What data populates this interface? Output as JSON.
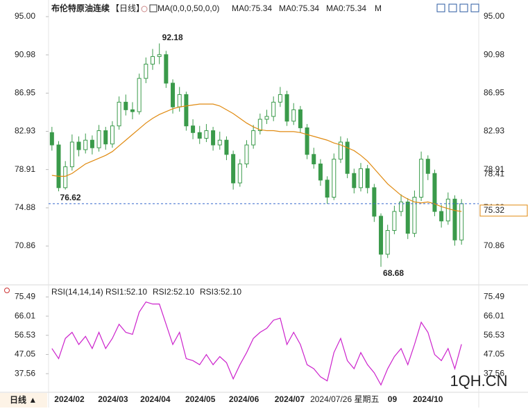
{
  "chart_data": [
    {
      "type": "candlestick",
      "title": "布伦特原油连续",
      "period": "【日线】",
      "indicator": "MA(0,0,0,50,0,0)",
      "legend": [
        {
          "label": "MA0:75.34",
          "color": "#1a1a4a"
        },
        {
          "label": "MA0:75.34",
          "color": "#2a3fb0"
        },
        {
          "label": "MA0:75.34",
          "color": "#d030d0"
        },
        {
          "label": "M",
          "color": "#e08a10"
        }
      ],
      "color": "#3a9a4a",
      "candles": {
        "open": [
          82.8,
          81.5,
          77.0,
          79.2,
          81.8,
          81.0,
          82.0,
          81.2,
          83.0,
          81.6,
          83.5,
          86.0,
          85.2,
          85.0,
          88.5,
          90.0,
          90.8,
          91.0,
          88.0,
          85.5,
          86.8,
          83.5,
          82.8,
          82.2,
          83.0,
          81.5,
          82.0,
          80.5,
          77.5,
          79.5,
          81.5,
          83.0,
          84.2,
          84.5,
          86.0,
          86.8,
          84.0,
          85.2,
          83.3,
          80.5,
          79.5,
          77.8,
          76.0,
          80.0,
          81.8,
          78.5,
          77.0,
          79.0,
          77.0,
          74.0,
          70.0,
          72.5,
          74.5,
          75.5,
          72.2,
          76.0,
          80.0,
          78.5,
          74.5,
          73.5,
          75.8,
          71.5
        ],
        "high": [
          83.4,
          81.9,
          79.8,
          82.6,
          82.4,
          82.7,
          82.5,
          83.6,
          83.4,
          84.0,
          86.6,
          86.8,
          86.0,
          89.0,
          90.7,
          91.6,
          92.18,
          91.4,
          88.4,
          87.6,
          87.1,
          84.2,
          83.5,
          83.7,
          83.4,
          82.9,
          82.4,
          80.9,
          80.0,
          82.0,
          83.6,
          84.8,
          85.2,
          86.6,
          87.6,
          87.2,
          85.9,
          85.6,
          83.7,
          81.2,
          80.0,
          78.2,
          80.6,
          82.4,
          82.2,
          79.0,
          79.6,
          79.4,
          77.4,
          74.3,
          73.1,
          75.1,
          76.3,
          75.9,
          76.7,
          80.8,
          80.4,
          78.9,
          75.2,
          76.5,
          76.2,
          75.8
        ],
        "low": [
          80.9,
          76.62,
          76.8,
          78.8,
          80.3,
          80.6,
          80.5,
          80.8,
          81.0,
          81.2,
          83.1,
          84.6,
          84.2,
          84.7,
          88.0,
          89.4,
          90.0,
          87.5,
          84.8,
          85.0,
          83.0,
          82.1,
          81.6,
          81.8,
          80.9,
          81.0,
          79.9,
          76.8,
          77.1,
          79.1,
          81.1,
          82.6,
          83.7,
          84.0,
          85.5,
          83.5,
          83.6,
          82.8,
          80.0,
          79.0,
          77.2,
          75.3,
          75.7,
          79.6,
          78.0,
          76.4,
          76.6,
          76.4,
          73.4,
          68.68,
          69.6,
          72.1,
          74.0,
          71.6,
          71.8,
          75.6,
          77.8,
          74.0,
          72.8,
          73.1,
          70.9,
          71.0
        ],
        "close": [
          81.5,
          77.0,
          79.2,
          81.8,
          81.0,
          82.0,
          81.2,
          83.0,
          81.6,
          83.5,
          86.0,
          85.2,
          85.0,
          88.5,
          90.0,
          90.8,
          91.0,
          88.0,
          85.5,
          86.8,
          83.5,
          82.8,
          82.2,
          83.0,
          81.5,
          82.0,
          80.5,
          77.5,
          79.5,
          81.5,
          83.0,
          84.2,
          84.5,
          86.0,
          86.8,
          84.0,
          85.2,
          83.3,
          80.5,
          79.5,
          77.8,
          76.0,
          80.0,
          81.8,
          78.5,
          77.0,
          79.0,
          77.0,
          74.0,
          70.0,
          72.5,
          74.5,
          75.5,
          72.2,
          76.0,
          80.0,
          78.5,
          74.5,
          73.5,
          75.8,
          71.5,
          75.32
        ]
      },
      "ma": {
        "color": "#e08a10",
        "values": [
          78.3,
          78.2,
          78.2,
          78.5,
          79.0,
          79.5,
          79.8,
          80.1,
          80.4,
          80.8,
          81.4,
          82.0,
          82.6,
          83.2,
          83.8,
          84.3,
          84.7,
          85.0,
          85.3,
          85.5,
          85.6,
          85.7,
          85.8,
          85.8,
          85.8,
          85.6,
          85.2,
          84.8,
          84.3,
          83.8,
          83.4,
          83.1,
          83.0,
          83.0,
          82.9,
          82.9,
          82.9,
          82.8,
          82.6,
          82.4,
          82.2,
          82.0,
          81.7,
          81.5,
          81.2,
          80.9,
          80.4,
          79.8,
          79.0,
          78.2,
          77.4,
          76.8,
          76.2,
          75.8,
          75.5,
          75.4,
          75.5,
          75.3,
          75.0,
          74.8,
          74.6,
          74.5
        ]
      },
      "ma_label": 78.41,
      "ylim": [
        66.85,
        95.29
      ],
      "yticks": [
        {
          "value": 95,
          "label": "95.00"
        },
        90.98,
        86.95,
        82.93,
        78.91,
        74.88,
        70.86
      ],
      "xticks": [
        {
          "value": 2.6,
          "label": "2024/02"
        },
        {
          "value": 9.1,
          "label": "2024/03"
        },
        {
          "value": 15.4,
          "label": "2024/04"
        },
        {
          "value": 22.1,
          "label": "2024/05"
        },
        {
          "value": 28.6,
          "label": "2024/06"
        },
        {
          "value": 35.4,
          "label": "2024/07"
        },
        {
          "value": 50.7,
          "label": "09"
        },
        {
          "value": 56.0,
          "label": "2024/10"
        }
      ],
      "cursor": {
        "value": 43.6,
        "label": "2024/07/26 星期五"
      },
      "period_button": "日线 ▲",
      "watermark": "1QH.CN"
    },
    {
      "type": "line",
      "indicator": "RSI(14,14,14)",
      "legend": [
        {
          "label": "RSI1:52.10",
          "color": "#1a1a4a"
        },
        {
          "label": "RSI2:52.10",
          "color": "#2a3fb0"
        },
        {
          "label": "RSI3:52.10",
          "color": "#d030d0"
        }
      ],
      "series": [
        {
          "name": "RSI",
          "color": "#cc22cc",
          "values": [
            50,
            45,
            55,
            58,
            52,
            56,
            50,
            58,
            50,
            55,
            62,
            58,
            57,
            68,
            73,
            72,
            72,
            62,
            52,
            58,
            45,
            44,
            42,
            47,
            42,
            46,
            43,
            35,
            42,
            48,
            55,
            58,
            60,
            64,
            65,
            52,
            58,
            52,
            42,
            40,
            36,
            34,
            48,
            55,
            44,
            40,
            48,
            42,
            38,
            32,
            40,
            46,
            50,
            42,
            52,
            63,
            58,
            47,
            44,
            50,
            40,
            52.1
          ]
        }
      ],
      "ylim": [
        28.7,
        80.1
      ],
      "yticks": [
        75.49,
        66.01,
        56.53,
        47.05,
        37.56
      ]
    }
  ]
}
